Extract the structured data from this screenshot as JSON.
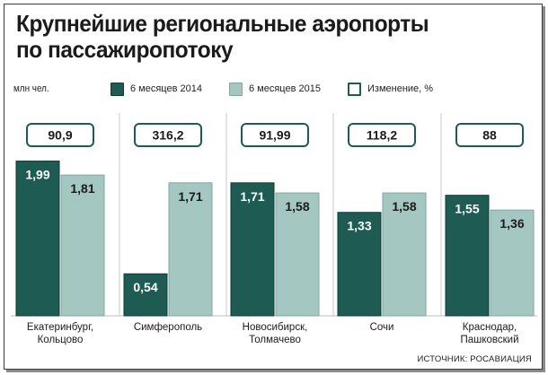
{
  "title_line1": "Крупнейшие региональные аэропорты",
  "title_line2": "по пассажиропотоку",
  "units": "млн чел.",
  "legend": [
    {
      "label": "6 месяцев 2014",
      "color": "#1e5c53"
    },
    {
      "label": "6 месяцев 2015",
      "color": "#a5c7c1"
    },
    {
      "label": "Изменение, %",
      "color": "#ffffff"
    }
  ],
  "source": "ИСТОЧНИК: РОСАВИАЦИЯ",
  "colors": {
    "dark": "#1e5c53",
    "light": "#a5c7c1",
    "grid": "#c9c9c9",
    "box_border": "#1e5c53"
  },
  "chart_data": {
    "type": "bar",
    "categories": [
      "Екатеринбург,\nКольцово",
      "Симферополь",
      "Новосибирск,\nТолмачево",
      "Сочи",
      "Краснодар,\nПашковский"
    ],
    "series": [
      {
        "name": "6 месяцев 2014",
        "values": [
          1.99,
          0.54,
          1.71,
          1.33,
          1.55
        ],
        "labels": [
          "1,99",
          "0,54",
          "1,71",
          "1,33",
          "1,55"
        ]
      },
      {
        "name": "6 месяцев 2015",
        "values": [
          1.81,
          1.71,
          1.58,
          1.58,
          1.36
        ],
        "labels": [
          "1,81",
          "1,71",
          "1,58",
          "1,58",
          "1,36"
        ]
      }
    ],
    "change": {
      "name": "Изменение, %",
      "values": [
        90.9,
        316.2,
        91.99,
        118.2,
        88
      ],
      "labels": [
        "90,9",
        "316,2",
        "91,99",
        "118,2",
        "88"
      ]
    },
    "ylabel": "млн чел.",
    "ylim": [
      0,
      2.1
    ],
    "grid": false
  }
}
